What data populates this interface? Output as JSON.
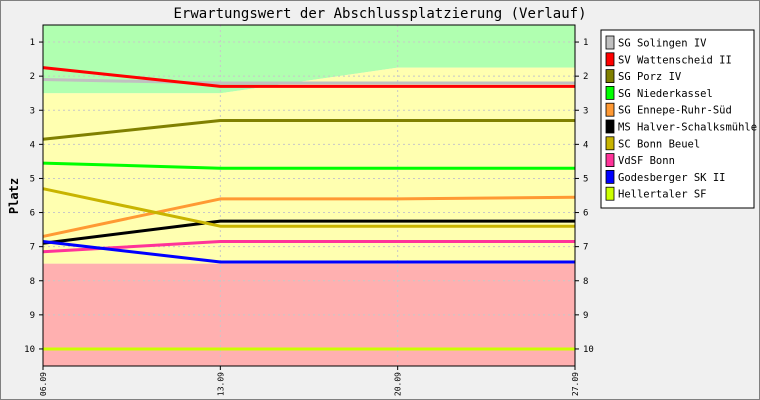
{
  "chart_data": {
    "type": "line",
    "title": "Erwartungswert der Abschlussplatzierung (Verlauf)",
    "xlabel": "",
    "ylabel": "Platz",
    "x": [
      "06.09",
      "13.09",
      "20.09",
      "27.09"
    ],
    "y_ticks": [
      1,
      2,
      3,
      4,
      5,
      6,
      7,
      8,
      9,
      10
    ],
    "ylim": [
      10.5,
      0.5
    ],
    "y_inverted": true,
    "legend_position": "right",
    "zones": [
      {
        "name": "promotion",
        "color": "#b0ffb0",
        "boundary": [
          2.5,
          2.5,
          1.75,
          1.75
        ]
      },
      {
        "name": "middle",
        "color": "#ffffb0",
        "from": "promotion",
        "to": 7.5
      },
      {
        "name": "relegation",
        "color": "#ffb0b0",
        "from": 7.5,
        "to": 10.5
      }
    ],
    "series": [
      {
        "name": "SG Solingen IV",
        "color": "#c0c0c0",
        "values": [
          2.1,
          2.2,
          2.2,
          2.2
        ]
      },
      {
        "name": "SV Wattenscheid II",
        "color": "#ff0000",
        "values": [
          1.75,
          2.3,
          2.3,
          2.3
        ]
      },
      {
        "name": "SG Porz IV",
        "color": "#808000",
        "values": [
          3.85,
          3.3,
          3.3,
          3.3
        ]
      },
      {
        "name": "SG Niederkassel",
        "color": "#00ff00",
        "values": [
          4.55,
          4.7,
          4.7,
          4.7
        ]
      },
      {
        "name": "SG Ennepe-Ruhr-Süd",
        "color": "#ff9933",
        "values": [
          6.7,
          5.6,
          5.6,
          5.55
        ]
      },
      {
        "name": "MS Halver-Schalksmühle",
        "color": "#000000",
        "values": [
          6.9,
          6.25,
          6.25,
          6.25
        ]
      },
      {
        "name": "SC Bonn Beuel",
        "color": "#c8b400",
        "values": [
          5.3,
          6.4,
          6.4,
          6.4
        ]
      },
      {
        "name": "VdSF Bonn",
        "color": "#ff3399",
        "values": [
          7.15,
          6.85,
          6.85,
          6.85
        ]
      },
      {
        "name": "Godesberger SK II",
        "color": "#0000ff",
        "values": [
          6.85,
          7.45,
          7.45,
          7.45
        ]
      },
      {
        "name": "Hellertaler SF",
        "color": "#ccff00",
        "values": [
          10.0,
          10.0,
          10.0,
          10.0
        ]
      }
    ]
  }
}
